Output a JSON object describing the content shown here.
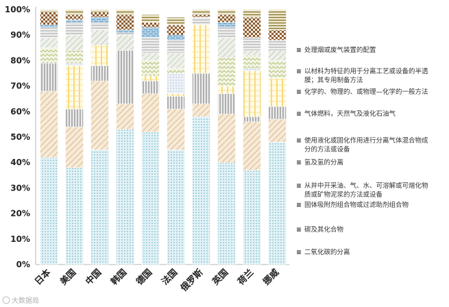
{
  "chart_data": {
    "type": "bar",
    "stacked": true,
    "normalized": true,
    "categories": [
      "日本",
      "美国",
      "中国",
      "韩国",
      "德国",
      "法国",
      "俄罗斯",
      "英国",
      "荷兰",
      "挪威"
    ],
    "ylim": [
      0,
      100
    ],
    "y_ticks": [
      "0%",
      "10%",
      "20%",
      "30%",
      "40%",
      "50%",
      "60%",
      "70%",
      "80%",
      "90%",
      "100%"
    ],
    "legend_position": "right",
    "series": [
      {
        "name": "二氧化碳的分离",
        "color": "#9fd0dc",
        "values": [
          42,
          38,
          45,
          53,
          52,
          45,
          58,
          40,
          37,
          48
        ]
      },
      {
        "name": "碳及其化合物",
        "color": "#e8c9a0",
        "values": [
          26,
          16,
          27,
          10,
          15,
          16,
          5,
          19,
          19,
          9
        ]
      },
      {
        "name": "固体吸附剂组合物或过滤助剂组合物",
        "color": "#a9a9a9",
        "values": [
          11,
          7,
          6,
          21,
          5,
          5,
          12,
          8,
          2,
          5
        ]
      },
      {
        "name": "从井中开采油、气、水、可溶解或可熔化物质或矿物泥浆的方法或设备",
        "color": "#f2d56b",
        "values": [
          0,
          17,
          8,
          0,
          2,
          1,
          19,
          3,
          18,
          11
        ]
      },
      {
        "name": "氢及氢的分离",
        "color": "#c8d4e4",
        "values": [
          0,
          1,
          0,
          0,
          0,
          8,
          0,
          0,
          1,
          0
        ]
      },
      {
        "name": "使用液化或固化作用进行分离气体混合物成分的方法或设备",
        "color": "#d0d8a0",
        "values": [
          6,
          5,
          0,
          0,
          6,
          2,
          0,
          11,
          5,
          7
        ]
      },
      {
        "name": "气体燃料，天然气及液化石油气",
        "color": "#b8c8b0",
        "values": [
          4,
          6,
          6,
          6,
          3,
          6,
          0,
          8,
          2,
          4
        ]
      },
      {
        "name": "化学的、物理的、或物理—化学的一般方法",
        "color": "#bbbbbb",
        "values": [
          4,
          5,
          3,
          1,
          6,
          5,
          3,
          4,
          5,
          4
        ]
      },
      {
        "name": "以材料为特征的用于分离工艺或设备的半透膜；其专用制备方法",
        "color": "#7fb3d5",
        "values": [
          1,
          1,
          2,
          1,
          4,
          2,
          0,
          2,
          0,
          0
        ]
      },
      {
        "name": "处理烟或废气装置的配置",
        "color": "#8a6f4f",
        "values": [
          5,
          2,
          2,
          6,
          2,
          4,
          1,
          3,
          8,
          4
        ]
      },
      {
        "name": "",
        "color": "#cfcfcf",
        "values": [
          1,
          2,
          1,
          2,
          3,
          3,
          2,
          2,
          3,
          8
        ]
      }
    ],
    "legend": [
      "处理烟或废气装置的配置",
      "以材料为特征的用于分离工艺或设备的半透膜；其专用制备方法",
      "化学的、物理的、或物理—化学的一般方法",
      "气体燃料，天然气及液化石油气",
      "使用液化或固化作用进行分离气体混合物成分的方法或设备",
      "氢及氢的分离",
      "从井中开采油、气、水、可溶解或可熔化物质或矿物泥浆的方法或设备",
      "固体吸附剂组合物或过滤助剂组合物",
      "碳及其化合物",
      "二氧化碳的分离"
    ],
    "legend_colors": [
      "#7a6420",
      "#6f6f8f",
      "#8a5a2a",
      "#555555",
      "#9aaa70",
      "#8aa0b8",
      "#d8b020",
      "#999999",
      "#c0a070",
      "#9fc8d0"
    ]
  },
  "watermark": "大数据局"
}
